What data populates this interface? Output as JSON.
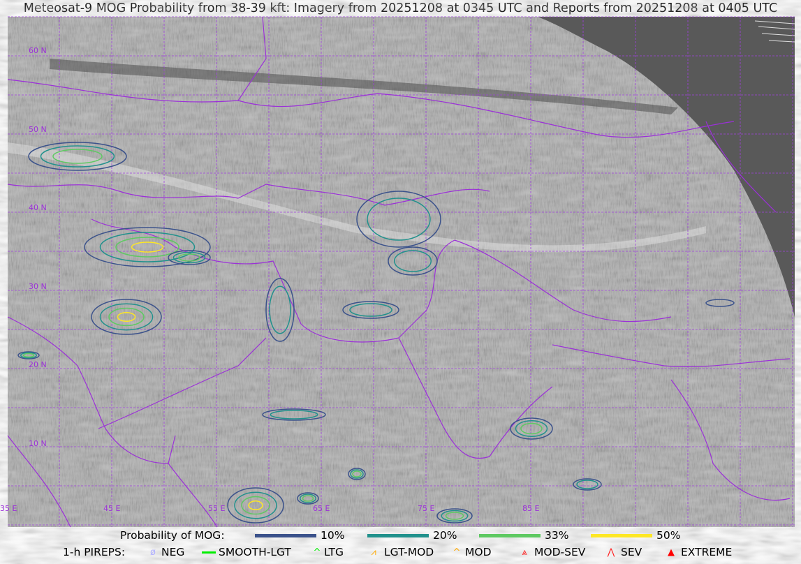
{
  "title": "Meteosat-9 MOG Probability from 38-39 kft: Imagery from 20251208 at 0345 UTC and Reports from 20251208 at 0405 UTC",
  "map": {
    "lat_labels": [
      "60 N",
      "50 N",
      "40 N",
      "30 N",
      "20 N",
      "10 N"
    ],
    "lon_labels": [
      "35 E",
      "45 E",
      "55 E",
      "65 E",
      "75 E",
      "85 E"
    ],
    "grid_color": "#a040e0",
    "border_color": "#9b30d8",
    "space_color": "#595959"
  },
  "legend": {
    "probability": {
      "label": "Probability of MOG:",
      "items": [
        {
          "label": "10%",
          "color": "#3b528b"
        },
        {
          "label": "20%",
          "color": "#21918c"
        },
        {
          "label": "33%",
          "color": "#5ec962"
        },
        {
          "label": "50%",
          "color": "#fde725"
        }
      ]
    },
    "pireps": {
      "label": "1-h PIREPS:",
      "items": [
        {
          "label": "NEG",
          "icon": "null-circle-icon",
          "color": "#b0b0ff"
        },
        {
          "label": "SMOOTH-LGT",
          "icon": "dash-icon",
          "color": "#00ee00"
        },
        {
          "label": "LTG",
          "icon": "caret-icon",
          "color": "#00ee00"
        },
        {
          "label": "LGT-MOD",
          "icon": "caret-bar-icon",
          "color": "#ffaa00"
        },
        {
          "label": "MOD",
          "icon": "caret-icon",
          "color": "#ffaa00"
        },
        {
          "label": "MOD-SEV",
          "icon": "double-caret-bar-icon",
          "color": "#ff2020"
        },
        {
          "label": "SEV",
          "icon": "double-caret-icon",
          "color": "#ff2020"
        },
        {
          "label": "EXTREME",
          "icon": "filled-triangle-icon",
          "color": "#ff0000"
        }
      ]
    }
  }
}
